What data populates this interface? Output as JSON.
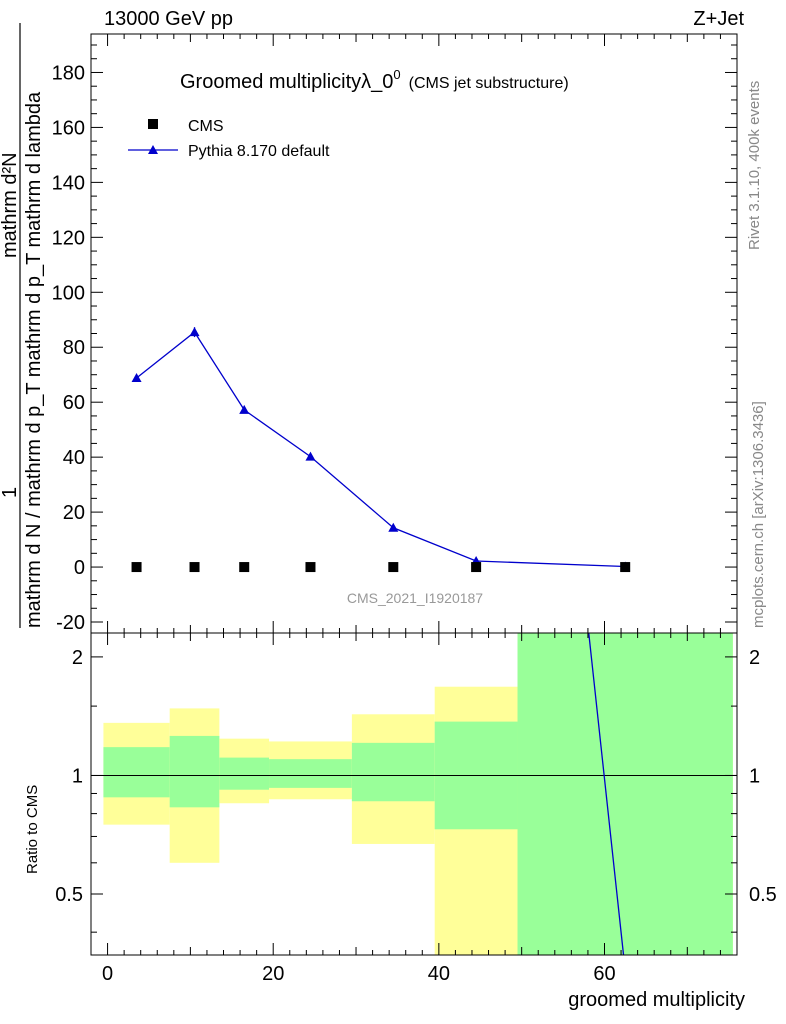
{
  "header": {
    "left": "13000 GeV pp",
    "right": "Z+Jet"
  },
  "side_text": {
    "rivet": "Rivet 3.1.10,  400k events",
    "mcplots": "mcplots.cern.ch [arXiv:1306.3436]"
  },
  "chart_data": [
    {
      "panel": "main",
      "type": "scatter",
      "title": "Groomed multiplicityλ_0",
      "title_sup": "0",
      "subtitle": "(CMS jet substructure)",
      "watermark": "CMS_2021_I1920187",
      "ylabel_numerator": "mathrm d²N",
      "ylabel_denominator": "mathrm d N / mathrm d p_T mathrm d p_T mathrm d lambda",
      "ylabel_prefix": "1",
      "xlim": [
        -2,
        76
      ],
      "ylim": [
        -24,
        194
      ],
      "yticks": [
        -20,
        0,
        20,
        40,
        60,
        80,
        100,
        120,
        140,
        160,
        180
      ],
      "legend_position": "top-left",
      "series": [
        {
          "name": "CMS",
          "marker": "square",
          "color": "#000000",
          "x": [
            3.5,
            10.5,
            16.5,
            24.5,
            34.5,
            44.5,
            62.5
          ],
          "y": [
            0,
            0,
            0,
            0,
            0,
            0,
            0
          ]
        },
        {
          "name": "Pythia 8.170 default",
          "marker": "triangle",
          "color": "#0000cc",
          "x": [
            3.5,
            10.5,
            16.5,
            24.5,
            34.5,
            44.5,
            62.5
          ],
          "y": [
            68.8,
            85.5,
            57.2,
            40.2,
            14.3,
            2.2,
            0.2
          ],
          "yerr": [
            0.8,
            1.8,
            0.9,
            0.6,
            0.5,
            0.2,
            0.1
          ]
        }
      ]
    },
    {
      "panel": "ratio",
      "type": "area",
      "ylabel": "Ratio to CMS",
      "xlabel": "groomed multiplicity",
      "xlim": [
        -2,
        76
      ],
      "ylim": [
        0.35,
        2.3
      ],
      "yticks": [
        0.5,
        1,
        2
      ],
      "xticks": [
        0,
        20,
        40,
        60
      ],
      "bands": [
        {
          "xlo": -0.5,
          "xhi": 7.5,
          "inner": [
            0.88,
            1.18
          ],
          "outer": [
            0.75,
            1.36
          ]
        },
        {
          "xlo": 7.5,
          "xhi": 13.5,
          "inner": [
            0.83,
            1.26
          ],
          "outer": [
            0.6,
            1.48
          ]
        },
        {
          "xlo": 13.5,
          "xhi": 19.5,
          "inner": [
            0.92,
            1.11
          ],
          "outer": [
            0.85,
            1.24
          ]
        },
        {
          "xlo": 19.5,
          "xhi": 29.5,
          "inner": [
            0.93,
            1.1
          ],
          "outer": [
            0.87,
            1.22
          ]
        },
        {
          "xlo": 29.5,
          "xhi": 39.5,
          "inner": [
            0.86,
            1.21
          ],
          "outer": [
            0.67,
            1.43
          ]
        },
        {
          "xlo": 39.5,
          "xhi": 49.5,
          "inner": [
            0.73,
            1.37
          ],
          "outer": [
            0.35,
            1.68
          ]
        },
        {
          "xlo": 49.5,
          "xhi": 75.5,
          "inner": [
            0.35,
            2.3
          ],
          "outer": [
            0.35,
            2.3
          ]
        }
      ],
      "ratio_line": {
        "name": "Pythia 8.170 default",
        "color": "#0000cc",
        "x": [
          58.1,
          62.3
        ],
        "y": [
          2.3,
          0.35
        ]
      },
      "colors": {
        "inner": "#99ff99",
        "outer": "#ffff99"
      }
    }
  ]
}
